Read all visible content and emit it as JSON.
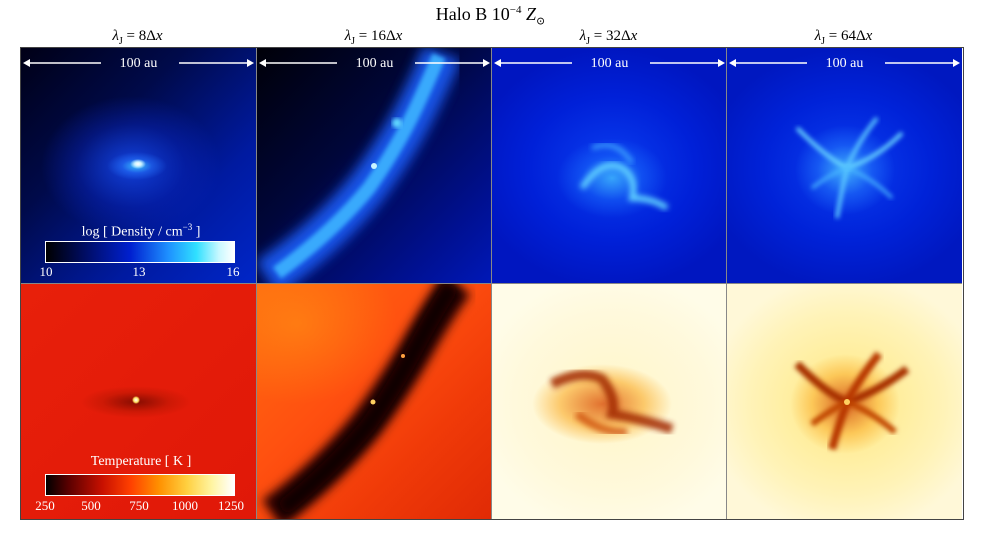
{
  "figure": {
    "title_prefix": "Halo B 10",
    "title_exponent": "−4",
    "title_symbol": "Z",
    "title_subscript": "⊙"
  },
  "columns": [
    {
      "lambda_symbol": "λ",
      "lambda_sub": "J",
      "eq": " = ",
      "value": "8Δ",
      "var": "x"
    },
    {
      "lambda_symbol": "λ",
      "lambda_sub": "J",
      "eq": " = ",
      "value": "16Δ",
      "var": "x"
    },
    {
      "lambda_symbol": "λ",
      "lambda_sub": "J",
      "eq": " = ",
      "value": "32Δ",
      "var": "x"
    },
    {
      "lambda_symbol": "λ",
      "lambda_sub": "J",
      "eq": " = ",
      "value": "64Δ",
      "var": "x"
    }
  ],
  "scale_bar": {
    "label": "100 au"
  },
  "density_colorbar": {
    "title_main": "log [ Density / cm",
    "title_exp": "−3",
    "title_end": " ]",
    "ticks": [
      "10",
      "13",
      "16"
    ]
  },
  "temperature_colorbar": {
    "title": "Temperature [ K ]",
    "ticks": [
      "250",
      "500",
      "750",
      "1000",
      "1250"
    ]
  },
  "colors": {
    "density_low": "#000000",
    "density_mid": "#0020d0",
    "density_high": "#ffffff",
    "temperature_low": "#000000",
    "temperature_mid": "#ff4000",
    "temperature_high": "#ffffff"
  }
}
